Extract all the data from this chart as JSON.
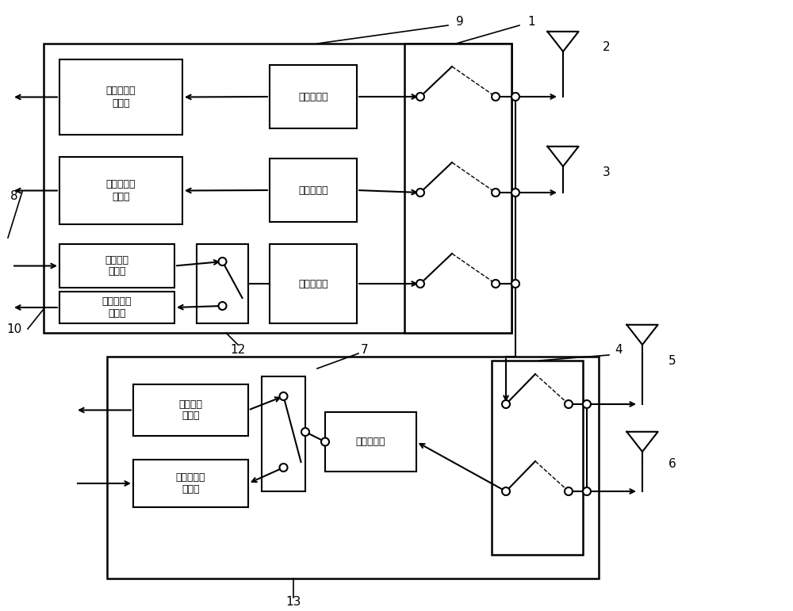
{
  "bg_color": "#ffffff",
  "lc": "#000000",
  "fig_width": 10.0,
  "fig_height": 7.71,
  "labels": {
    "lna3": "第三低噪声\n放大器",
    "lna1": "第一低噪声\n放大器",
    "pa2": "第二功率\n放大器",
    "lna4": "第四低噪声\n放大器",
    "filter3": "第三滤波器",
    "filter1": "第一滤波器",
    "filter4": "第四滤波器",
    "pa3": "第三功率\n放大器",
    "lna5": "第五低噪声\n放大器",
    "filter5": "第五滤波器"
  },
  "numbers": {
    "n1": "1",
    "n2": "2",
    "n3": "3",
    "n4": "4",
    "n5": "5",
    "n6": "6",
    "n7": "7",
    "n8": "8",
    "n9": "9",
    "n10": "10",
    "n12": "12",
    "n13": "13"
  }
}
